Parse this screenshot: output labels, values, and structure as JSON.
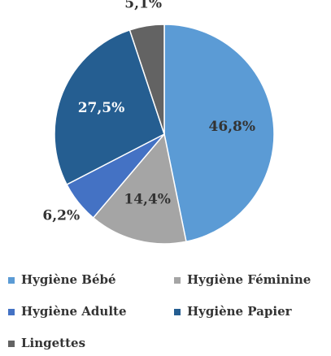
{
  "chart_data": {
    "type": "pie",
    "categories": [
      "Hygiène Bébé",
      "Hygiène Féminine",
      "Hygiène Adulte",
      "Hygiène Papier",
      "Lingettes"
    ],
    "values": [
      46.8,
      14.4,
      6.2,
      27.5,
      5.1
    ],
    "value_labels": [
      "46,8%",
      "14,4%",
      "6,2%",
      "27,5%",
      "5,1%"
    ],
    "colors": [
      "#5b9bd5",
      "#a5a5a5",
      "#4472c4",
      "#255e91",
      "#636363"
    ],
    "legend": "bottom"
  }
}
